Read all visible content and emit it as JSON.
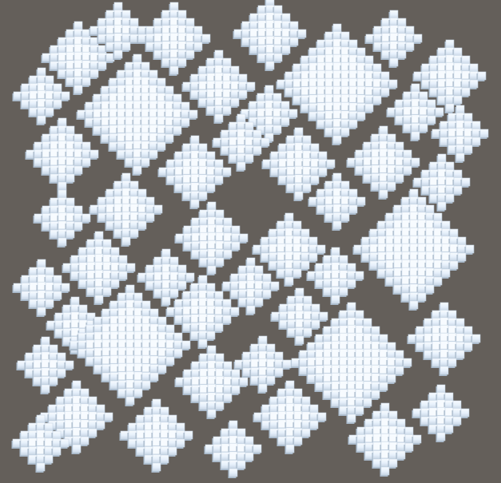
{
  "scene": {
    "background_color": "#645f5a",
    "cube_colors": {
      "top_light": "#f7fbff",
      "top_mid": "#e6f0fb",
      "side_shadow": "#a8b8c9",
      "outline": "#c9d7e6"
    },
    "cluster_style": "voxel-pyramid",
    "clusters": [
      {
        "kind": "stepped-pyramid",
        "tier": "medium"
      },
      {
        "kind": "stepped-pyramid",
        "tier": "medium"
      },
      {
        "kind": "stepped-pyramid",
        "tier": "medium"
      },
      {
        "kind": "stepped-pyramid",
        "tier": "small"
      },
      {
        "kind": "stepped-pyramid",
        "tier": "large"
      },
      {
        "kind": "stepped-pyramid",
        "tier": "small"
      },
      {
        "kind": "stepped-pyramid",
        "tier": "small"
      },
      {
        "kind": "stepped-pyramid",
        "tier": "large"
      },
      {
        "kind": "stepped-pyramid",
        "tier": "medium"
      },
      {
        "kind": "stepped-pyramid",
        "tier": "large"
      },
      {
        "kind": "stepped-pyramid",
        "tier": "medium"
      },
      {
        "kind": "stepped-pyramid",
        "tier": "small"
      },
      {
        "kind": "stepped-pyramid",
        "tier": "medium"
      },
      {
        "kind": "stepped-pyramid",
        "tier": "small"
      },
      {
        "kind": "stepped-pyramid",
        "tier": "medium"
      },
      {
        "kind": "stepped-pyramid",
        "tier": "medium"
      },
      {
        "kind": "stepped-pyramid",
        "tier": "medium"
      },
      {
        "kind": "stepped-pyramid",
        "tier": "medium"
      },
      {
        "kind": "stepped-pyramid",
        "tier": "small"
      },
      {
        "kind": "stepped-pyramid",
        "tier": "medium"
      },
      {
        "kind": "stepped-pyramid",
        "tier": "small"
      },
      {
        "kind": "stepped-pyramid",
        "tier": "small"
      },
      {
        "kind": "stepped-pyramid",
        "tier": "medium"
      },
      {
        "kind": "stepped-pyramid",
        "tier": "medium"
      },
      {
        "kind": "stepped-pyramid",
        "tier": "medium"
      },
      {
        "kind": "stepped-pyramid",
        "tier": "large"
      },
      {
        "kind": "stepped-pyramid",
        "tier": "small"
      },
      {
        "kind": "stepped-pyramid",
        "tier": "medium"
      },
      {
        "kind": "stepped-pyramid",
        "tier": "small"
      },
      {
        "kind": "stepped-pyramid",
        "tier": "small"
      },
      {
        "kind": "stepped-pyramid",
        "tier": "small"
      },
      {
        "kind": "stepped-pyramid",
        "tier": "medium"
      },
      {
        "kind": "stepped-pyramid",
        "tier": "small"
      },
      {
        "kind": "stepped-pyramid",
        "tier": "small"
      },
      {
        "kind": "stepped-pyramid",
        "tier": "large"
      },
      {
        "kind": "stepped-pyramid",
        "tier": "medium"
      },
      {
        "kind": "stepped-pyramid",
        "tier": "small"
      },
      {
        "kind": "stepped-pyramid",
        "tier": "large"
      },
      {
        "kind": "stepped-pyramid",
        "tier": "medium"
      },
      {
        "kind": "stepped-pyramid",
        "tier": "small"
      },
      {
        "kind": "stepped-pyramid",
        "tier": "small"
      },
      {
        "kind": "stepped-pyramid",
        "tier": "small"
      },
      {
        "kind": "stepped-pyramid",
        "tier": "medium"
      },
      {
        "kind": "stepped-pyramid",
        "tier": "medium"
      },
      {
        "kind": "stepped-pyramid",
        "tier": "small"
      },
      {
        "kind": "stepped-pyramid",
        "tier": "medium"
      },
      {
        "kind": "stepped-pyramid",
        "tier": "small"
      },
      {
        "kind": "stepped-pyramid",
        "tier": "medium"
      },
      {
        "kind": "stepped-pyramid",
        "tier": "small"
      }
    ]
  }
}
